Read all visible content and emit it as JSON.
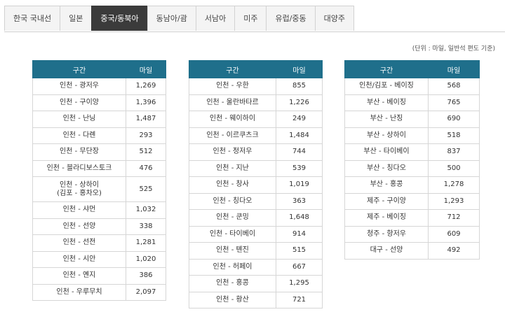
{
  "tabs": [
    "한국 국내선",
    "일본",
    "중국/동북아",
    "동남아/괌",
    "서남아",
    "미주",
    "유럽/중동",
    "대양주"
  ],
  "active_tab_index": 2,
  "note": "(단위 : 마일, 일반석 편도 기준)",
  "columns": {
    "route": "구간",
    "miles": "마일"
  },
  "tables": [
    {
      "rows": [
        {
          "route": "인천 - 광저우",
          "miles": "1,269"
        },
        {
          "route": "인천 - 구이양",
          "miles": "1,396"
        },
        {
          "route": "인천 - 난닝",
          "miles": "1,487"
        },
        {
          "route": "인천 - 다롄",
          "miles": "293"
        },
        {
          "route": "인천 - 무단장",
          "miles": "512"
        },
        {
          "route": "인천 - 블라디보스토크",
          "miles": "476"
        },
        {
          "route": "인천 - 상하이\n(김포 - 홍차오)",
          "miles": "525"
        },
        {
          "route": "인천 - 샤먼",
          "miles": "1,032"
        },
        {
          "route": "인천 - 선양",
          "miles": "338"
        },
        {
          "route": "인천 - 선전",
          "miles": "1,281"
        },
        {
          "route": "인천 - 시안",
          "miles": "1,020"
        },
        {
          "route": "인천 - 옌지",
          "miles": "386"
        },
        {
          "route": "인천 - 우루무치",
          "miles": "2,097"
        }
      ]
    },
    {
      "rows": [
        {
          "route": "인천 - 우한",
          "miles": "855"
        },
        {
          "route": "인천 - 울란바타르",
          "miles": "1,226"
        },
        {
          "route": "인천 - 웨이하이",
          "miles": "249"
        },
        {
          "route": "인천 - 이르쿠츠크",
          "miles": "1,484"
        },
        {
          "route": "인천 - 정저우",
          "miles": "744"
        },
        {
          "route": "인천 - 지난",
          "miles": "539"
        },
        {
          "route": "인천 - 창사",
          "miles": "1,019"
        },
        {
          "route": "인천 - 칭다오",
          "miles": "363"
        },
        {
          "route": "인천 - 쿤밍",
          "miles": "1,648"
        },
        {
          "route": "인천 - 타이베이",
          "miles": "914"
        },
        {
          "route": "인천 - 톈진",
          "miles": "515"
        },
        {
          "route": "인천 - 허페이",
          "miles": "667"
        },
        {
          "route": "인천 - 홍콩",
          "miles": "1,295"
        },
        {
          "route": "인천 - 황산",
          "miles": "721"
        }
      ]
    },
    {
      "rows": [
        {
          "route": "인천/김포 - 베이징",
          "miles": "568"
        },
        {
          "route": "부산 - 베이징",
          "miles": "765"
        },
        {
          "route": "부산 - 난징",
          "miles": "690"
        },
        {
          "route": "부산 - 상하이",
          "miles": "518"
        },
        {
          "route": "부산 - 타이베이",
          "miles": "837"
        },
        {
          "route": "부산 - 칭다오",
          "miles": "500"
        },
        {
          "route": "부산 - 홍콩",
          "miles": "1,278"
        },
        {
          "route": "제주 - 구이양",
          "miles": "1,293"
        },
        {
          "route": "제주 - 베이징",
          "miles": "712"
        },
        {
          "route": "청주 - 항저우",
          "miles": "609"
        },
        {
          "route": "대구 - 선양",
          "miles": "492"
        }
      ]
    }
  ]
}
